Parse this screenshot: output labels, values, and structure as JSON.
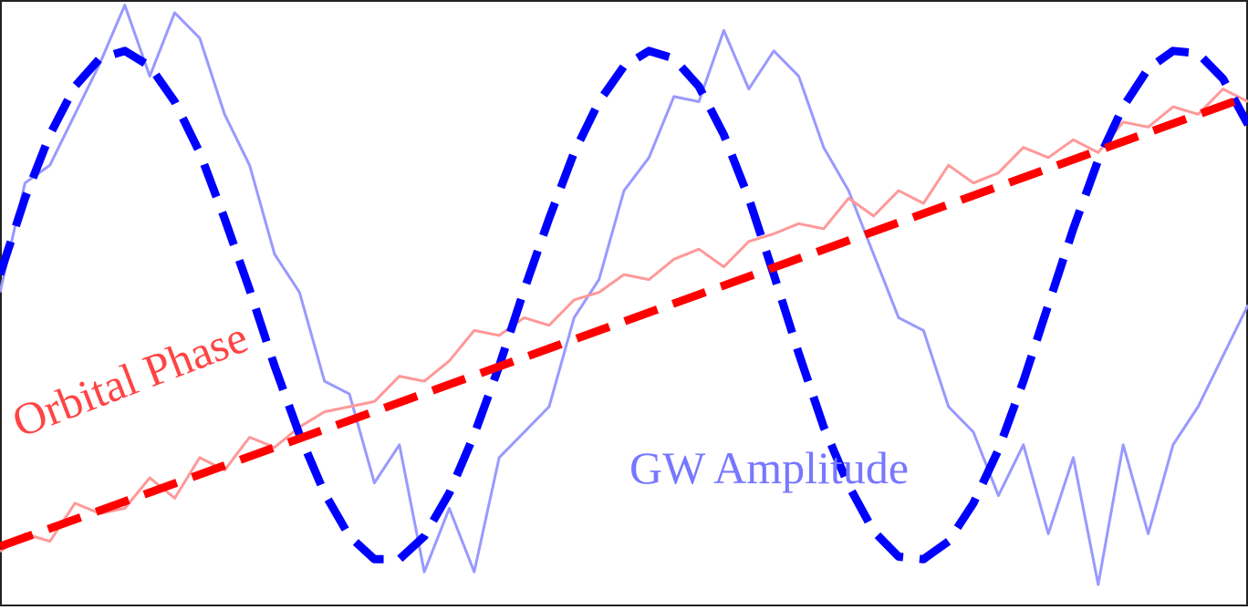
{
  "chart_data": {
    "type": "line",
    "title": "",
    "xlabel": "",
    "ylabel": "",
    "grid": false,
    "legend": "none",
    "xlim": [
      0,
      1
    ],
    "ylim": [
      -1.2,
      1.2
    ],
    "annotations": {
      "orbital_phase": "Orbital Phase",
      "gw_amplitude": "GW Amplitude"
    },
    "series": [
      {
        "role": "gw-noisy",
        "color": "#9999ff",
        "style": "solid",
        "x": [
          0,
          0.02,
          0.04,
          0.06,
          0.08,
          0.1,
          0.12,
          0.14,
          0.16,
          0.18,
          0.2,
          0.22,
          0.24,
          0.26,
          0.28,
          0.3,
          0.32,
          0.34,
          0.36,
          0.38,
          0.4,
          0.42,
          0.44,
          0.46,
          0.48,
          0.5,
          0.52,
          0.54,
          0.56,
          0.58,
          0.6,
          0.62,
          0.64,
          0.66,
          0.68,
          0.7,
          0.72,
          0.74,
          0.76,
          0.78,
          0.8,
          0.82,
          0.84,
          0.86,
          0.88,
          0.9,
          0.92,
          0.94,
          0.96,
          0.98,
          1.0
        ],
        "y": [
          0.05,
          0.48,
          0.55,
          0.75,
          0.95,
          1.18,
          0.9,
          1.15,
          1.05,
          0.75,
          0.55,
          0.2,
          0.05,
          -0.3,
          -0.35,
          -0.7,
          -0.55,
          -1.05,
          -0.8,
          -1.05,
          -0.6,
          -0.5,
          -0.4,
          -0.05,
          0.1,
          0.45,
          0.58,
          0.82,
          0.8,
          1.08,
          0.85,
          1.0,
          0.9,
          0.62,
          0.45,
          0.2,
          -0.05,
          -0.1,
          -0.4,
          -0.5,
          -0.75,
          -0.55,
          -0.9,
          -0.6,
          -1.1,
          -0.55,
          -0.9,
          -0.55,
          -0.4,
          -0.2,
          0.0
        ]
      },
      {
        "role": "phase-noisy",
        "color": "#ff9999",
        "style": "solid",
        "x": [
          0,
          0.02,
          0.04,
          0.06,
          0.08,
          0.1,
          0.12,
          0.14,
          0.16,
          0.18,
          0.2,
          0.22,
          0.24,
          0.26,
          0.28,
          0.3,
          0.32,
          0.34,
          0.36,
          0.38,
          0.4,
          0.42,
          0.44,
          0.46,
          0.48,
          0.5,
          0.52,
          0.54,
          0.56,
          0.58,
          0.6,
          0.62,
          0.64,
          0.66,
          0.68,
          0.7,
          0.72,
          0.74,
          0.76,
          0.78,
          0.8,
          0.82,
          0.84,
          0.86,
          0.88,
          0.9,
          0.92,
          0.94,
          0.96,
          0.98,
          1.0
        ],
        "y": [
          -0.97,
          -0.9,
          -0.93,
          -0.78,
          -0.82,
          -0.8,
          -0.68,
          -0.76,
          -0.6,
          -0.65,
          -0.52,
          -0.56,
          -0.48,
          -0.42,
          -0.4,
          -0.38,
          -0.28,
          -0.3,
          -0.22,
          -0.1,
          -0.12,
          -0.05,
          -0.08,
          0.02,
          0.05,
          0.12,
          0.1,
          0.18,
          0.22,
          0.15,
          0.25,
          0.28,
          0.32,
          0.3,
          0.42,
          0.35,
          0.45,
          0.4,
          0.55,
          0.48,
          0.52,
          0.62,
          0.58,
          0.65,
          0.6,
          0.72,
          0.7,
          0.78,
          0.75,
          0.85,
          0.8
        ]
      },
      {
        "role": "gw-fit",
        "color": "#0000ff",
        "style": "dashed",
        "x": [
          0,
          0.02,
          0.04,
          0.06,
          0.08,
          0.1,
          0.12,
          0.14,
          0.16,
          0.18,
          0.2,
          0.22,
          0.24,
          0.26,
          0.28,
          0.3,
          0.32,
          0.34,
          0.36,
          0.38,
          0.4,
          0.42,
          0.44,
          0.46,
          0.48,
          0.5,
          0.52,
          0.54,
          0.56,
          0.58,
          0.6,
          0.62,
          0.64,
          0.66,
          0.68,
          0.7,
          0.72,
          0.74,
          0.76,
          0.78,
          0.8,
          0.82,
          0.84,
          0.86,
          0.88,
          0.9,
          0.92,
          0.94,
          0.96,
          0.98,
          1.0
        ],
        "y": [
          0.12,
          0.42,
          0.67,
          0.86,
          0.97,
          1.0,
          0.94,
          0.8,
          0.6,
          0.34,
          0.06,
          -0.24,
          -0.51,
          -0.74,
          -0.91,
          -1.0,
          -1.0,
          -0.91,
          -0.74,
          -0.51,
          -0.24,
          0.06,
          0.34,
          0.6,
          0.8,
          0.94,
          1.0,
          0.97,
          0.86,
          0.67,
          0.42,
          0.12,
          -0.19,
          -0.48,
          -0.71,
          -0.89,
          -0.99,
          -1.0,
          -0.93,
          -0.78,
          -0.57,
          -0.3,
          0.0,
          0.3,
          0.57,
          0.78,
          0.93,
          1.0,
          0.99,
          0.89,
          0.71
        ]
      },
      {
        "role": "phase-fit",
        "color": "#ff0000",
        "style": "dashed",
        "x": [
          0,
          1
        ],
        "y": [
          -0.95,
          0.82
        ]
      }
    ]
  }
}
